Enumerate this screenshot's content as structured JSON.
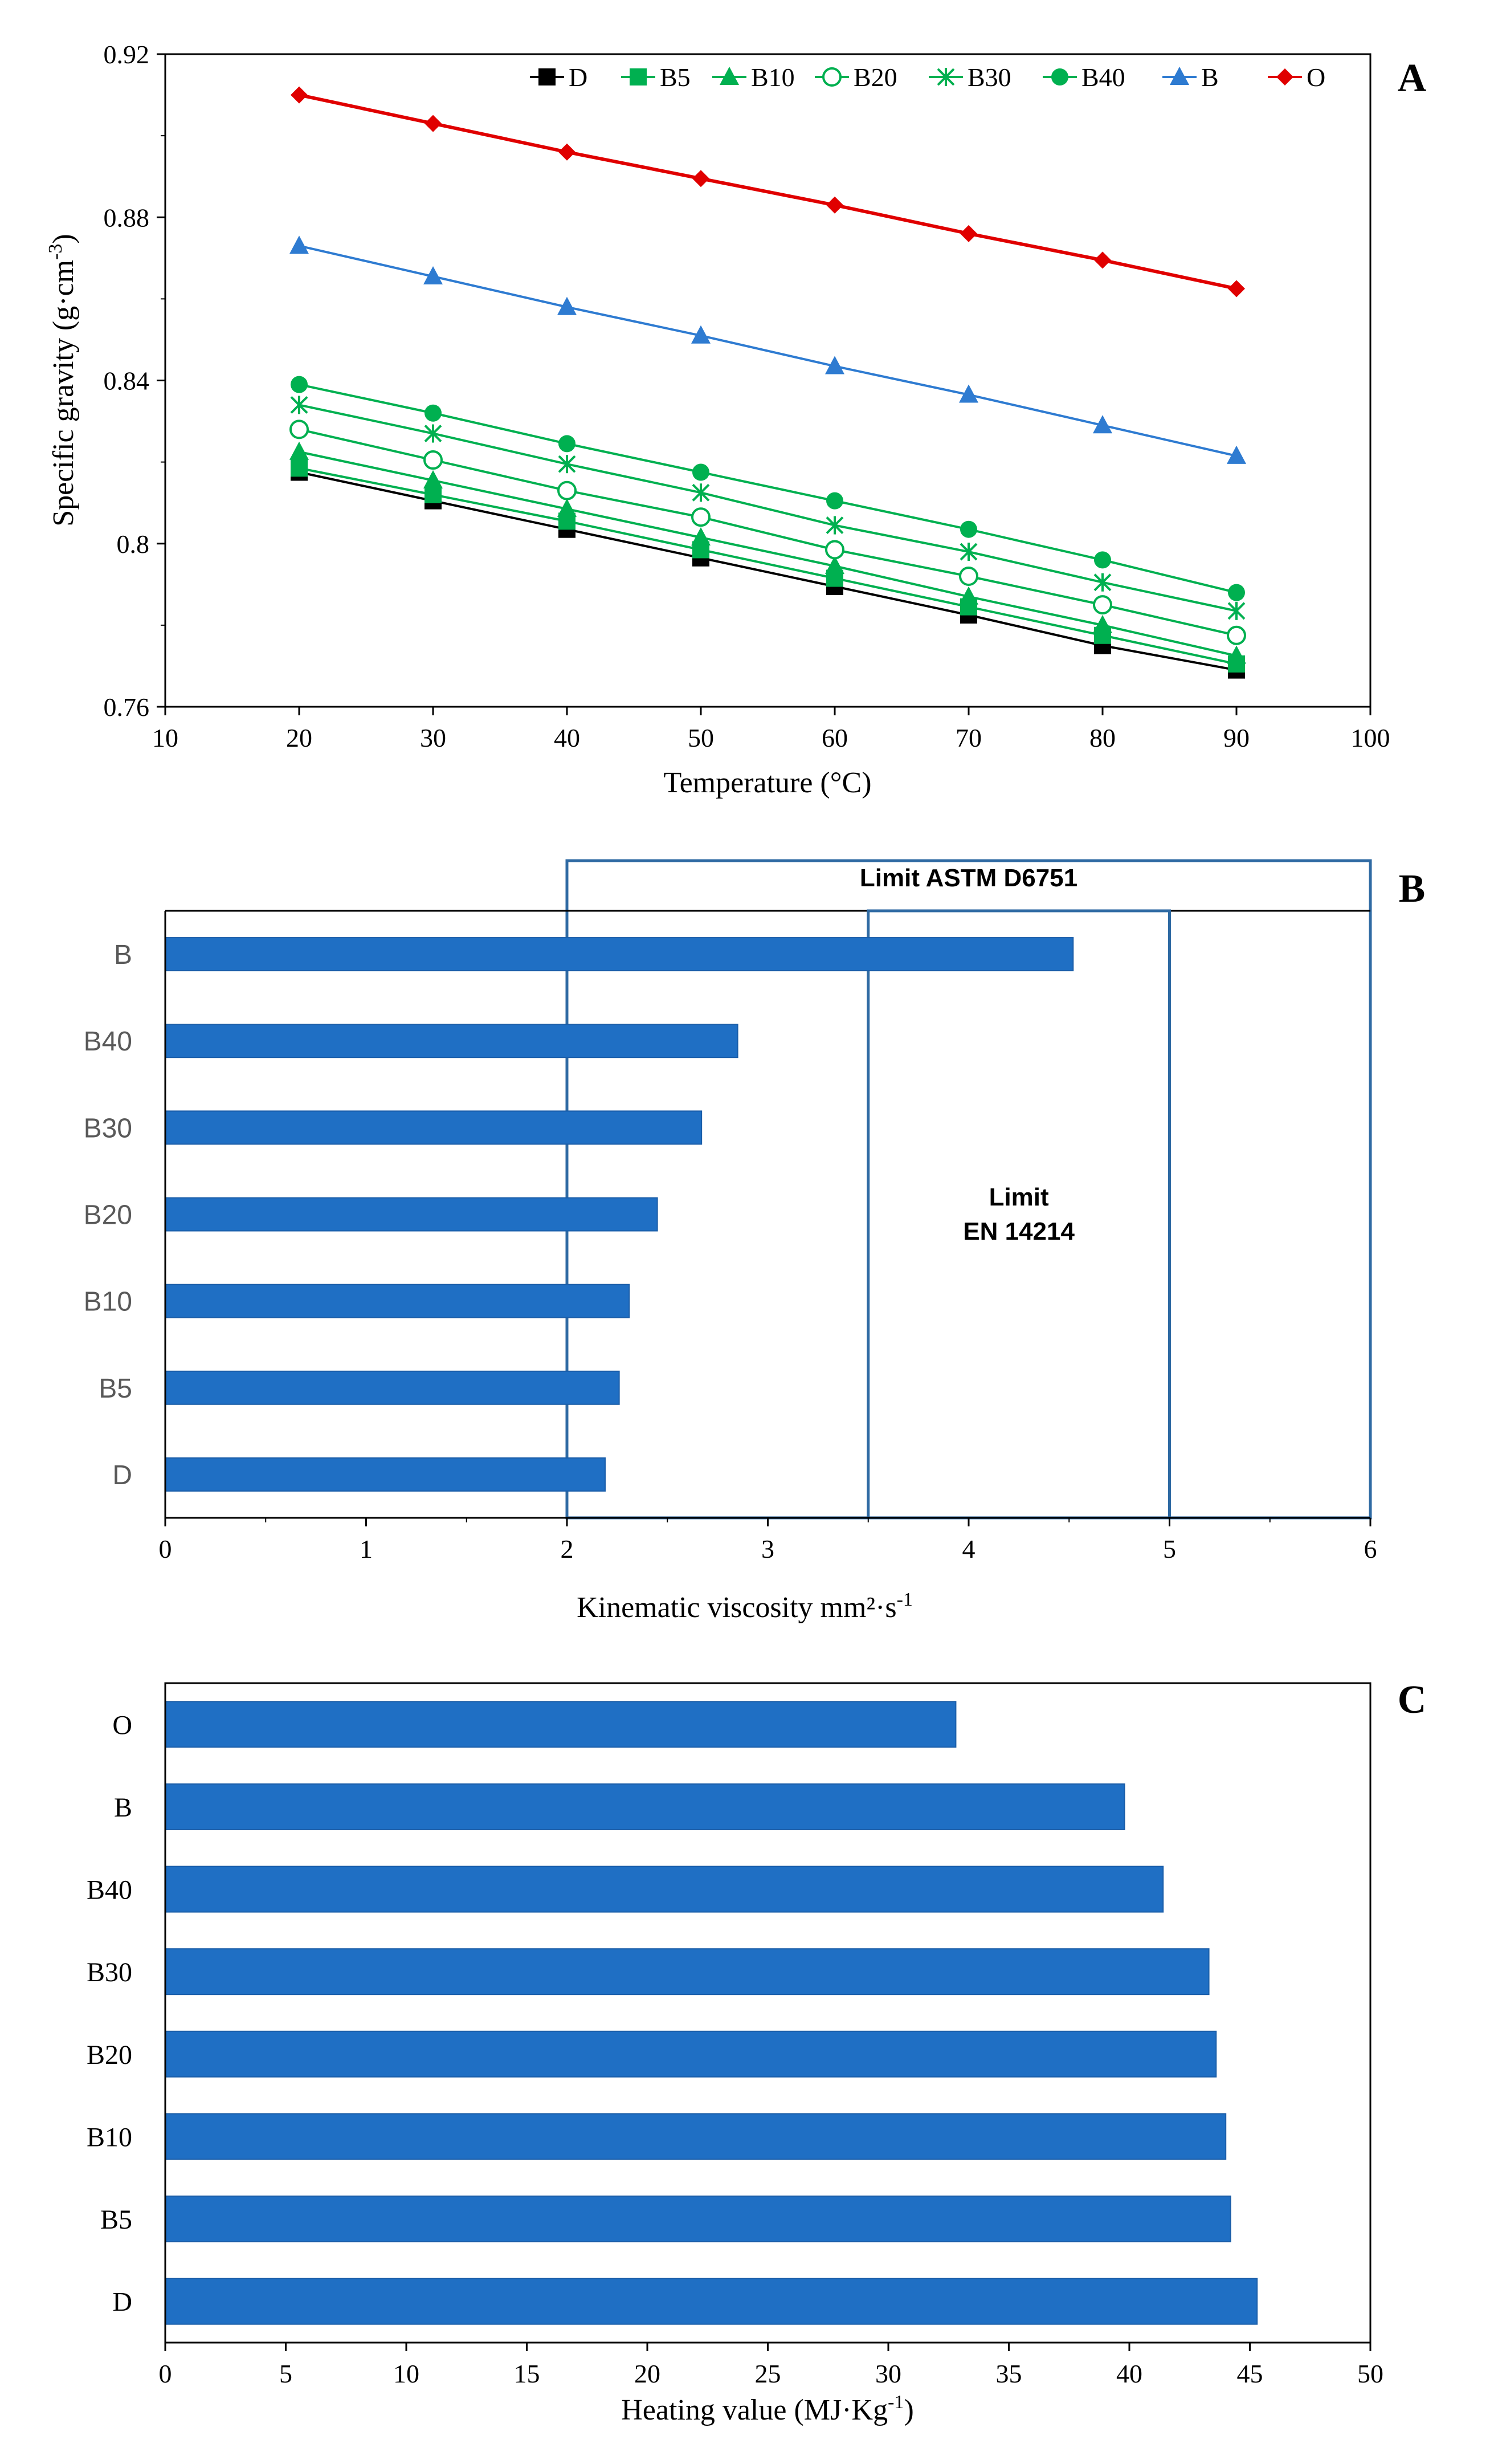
{
  "colors": {
    "bar": "#1f6fc4",
    "bar_stroke": "#1a5da8",
    "axis": "#000000",
    "limit_box": "#2f6aa3",
    "series": {
      "D": "#000000",
      "B5": "#00b050",
      "B10": "#00b050",
      "B20": "#00b050",
      "B30": "#00b050",
      "B40": "#00b050",
      "B": "#2e7bd1",
      "O": "#e00000"
    }
  },
  "chart_data": [
    {
      "panel": "A",
      "type": "line",
      "xlabel": "Temperature (°C)",
      "ylabel": "Specific gravity (g·cm-3)",
      "ylabel_main": "Specific gravity (g·cm",
      "ylabel_sup": "-3",
      "ylabel_close": ")",
      "xlim": [
        10,
        100
      ],
      "ylim": [
        0.76,
        0.92
      ],
      "xticks": [
        "10",
        "20",
        "30",
        "40",
        "50",
        "60",
        "70",
        "80",
        "90",
        "100"
      ],
      "yticks": [
        "0.76",
        "0.8",
        "0.84",
        "0.88",
        "0.92"
      ],
      "x": [
        20,
        30,
        40,
        50,
        60,
        70,
        80,
        90
      ],
      "legend_position": "top",
      "series": [
        {
          "name": "D",
          "marker": "square-filled",
          "values": [
            0.8175,
            0.8105,
            0.8035,
            0.7965,
            0.7895,
            0.7825,
            0.775,
            0.769
          ]
        },
        {
          "name": "B5",
          "marker": "square-filled",
          "values": [
            0.8185,
            0.812,
            0.8055,
            0.7985,
            0.7915,
            0.7845,
            0.7775,
            0.7705
          ]
        },
        {
          "name": "B10",
          "marker": "triangle-filled",
          "values": [
            0.8225,
            0.8155,
            0.8085,
            0.8015,
            0.7945,
            0.787,
            0.78,
            0.7725
          ]
        },
        {
          "name": "B20",
          "marker": "circle-open",
          "values": [
            0.828,
            0.8205,
            0.813,
            0.8065,
            0.7985,
            0.792,
            0.785,
            0.7775
          ]
        },
        {
          "name": "B30",
          "marker": "star",
          "values": [
            0.834,
            0.827,
            0.8195,
            0.8125,
            0.8045,
            0.798,
            0.7905,
            0.7835
          ]
        },
        {
          "name": "B40",
          "marker": "circle-filled",
          "values": [
            0.839,
            0.832,
            0.8245,
            0.8175,
            0.8105,
            0.8035,
            0.796,
            0.788
          ]
        },
        {
          "name": "B",
          "marker": "triangle-filled",
          "values": [
            0.873,
            0.8655,
            0.858,
            0.851,
            0.8435,
            0.8365,
            0.829,
            0.8215
          ]
        },
        {
          "name": "O",
          "marker": "diamond-filled",
          "values": [
            0.91,
            0.903,
            0.896,
            0.8895,
            0.883,
            0.876,
            0.8695,
            0.8625
          ]
        }
      ]
    },
    {
      "panel": "B",
      "type": "bar",
      "orientation": "horizontal",
      "xlabel": "Kinematic viscosity mm²·s-1",
      "xlabel_main": "Kinematic viscosity mm²·s",
      "xlabel_sup": "-1",
      "xlim": [
        0,
        6
      ],
      "xticks": [
        "0",
        "1",
        "2",
        "3",
        "4",
        "5",
        "6"
      ],
      "categories": [
        "B",
        "B40",
        "B30",
        "B20",
        "B10",
        "B5",
        "D"
      ],
      "values": [
        4.52,
        2.85,
        2.67,
        2.45,
        2.31,
        2.26,
        2.19
      ],
      "annotations": {
        "astm_label": "Limit ASTM D6751",
        "astm_range": [
          2,
          6
        ],
        "en_label_1": "Limit",
        "en_label_2": "EN 14214",
        "en_range": [
          3.5,
          5
        ]
      }
    },
    {
      "panel": "C",
      "type": "bar",
      "orientation": "horizontal",
      "xlabel": "Heating value (MJ·Kg-1)",
      "xlabel_main": "Heating value (MJ·Kg",
      "xlabel_sup": "-1",
      "xlabel_close": ")",
      "xlim": [
        0,
        50
      ],
      "xticks": [
        "0",
        "5",
        "10",
        "15",
        "20",
        "25",
        "30",
        "35",
        "40",
        "45",
        "50"
      ],
      "categories": [
        "O",
        "B",
        "B40",
        "B30",
        "B20",
        "B10",
        "B5",
        "D"
      ],
      "values": [
        32.8,
        39.8,
        41.4,
        43.3,
        43.6,
        44.0,
        44.2,
        45.3
      ]
    }
  ],
  "panel_labels": [
    "A",
    "B",
    "C"
  ]
}
